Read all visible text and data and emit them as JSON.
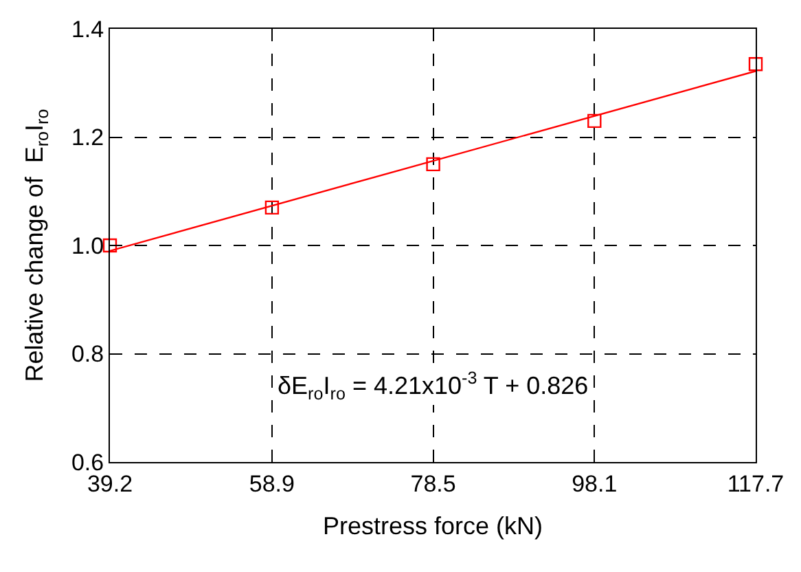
{
  "chart_data": {
    "type": "scatter",
    "xlabel": "Prestress force (kN)",
    "ylabel": "Relative change of  E$_{ro}$I$_{ro}$",
    "xlim": [
      39.2,
      117.7
    ],
    "xticks": [
      39.2,
      58.9,
      78.5,
      98.1,
      117.7
    ],
    "ylim": [
      0.6,
      1.4
    ],
    "yticks": [
      {
        "value": 0.6,
        "label": "0.6"
      },
      {
        "value": 0.8,
        "label": "0.8"
      },
      {
        "value": 1.0,
        "label": "1.0"
      },
      {
        "value": 1.2,
        "label": "1.2"
      },
      {
        "value": 1.4,
        "label": "1.4"
      }
    ],
    "grid": true,
    "series": [
      {
        "type": "line",
        "color": "#ff0000",
        "x": [
          39.2,
          117.7
        ],
        "values": [
          0.99,
          1.322
        ],
        "marker": "none",
        "line_style": "solid"
      },
      {
        "color": "#ff0000",
        "x": [
          39.2,
          58.9,
          78.5,
          98.1,
          117.7
        ],
        "values": [
          1.0,
          1.07,
          1.15,
          1.23,
          1.335
        ],
        "marker": "square"
      }
    ],
    "annotations": [
      "δE$_{ro}$I$_{ro}$ = 4.21x10$^{-3}$ T + 0.826"
    ]
  }
}
